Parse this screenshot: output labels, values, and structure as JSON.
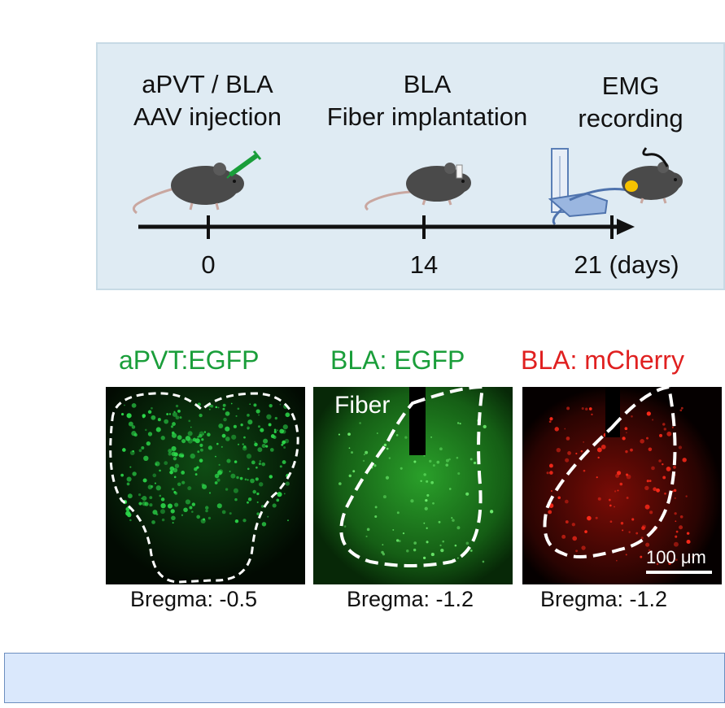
{
  "timeline": {
    "steps": [
      {
        "line1": "aPVT / BLA",
        "line2": "AAV injection"
      },
      {
        "line1": "BLA",
        "line2": "Fiber implantation"
      },
      {
        "line1": "EMG",
        "line2": "recording"
      }
    ],
    "ticks": [
      "0",
      "14",
      "21 (days)"
    ]
  },
  "panels": [
    {
      "title": "aPVT:EGFP",
      "title_color": "#1a9e3a",
      "bregma": "Bregma: -0.5"
    },
    {
      "title": "BLA: EGFP",
      "title_color": "#1a9e3a",
      "bregma": "Bregma: -1.2",
      "fiber_label": "Fiber"
    },
    {
      "title": "BLA: mCherry",
      "title_color": "#e02020",
      "bregma": "Bregma: -1.2",
      "scale_label": "100 μm"
    }
  ],
  "colors": {
    "panel_bg": "#dfebf3",
    "egfp": "#2cd84a",
    "mcherry": "#ff2a1a",
    "bottom_box": "#dae8fc"
  }
}
